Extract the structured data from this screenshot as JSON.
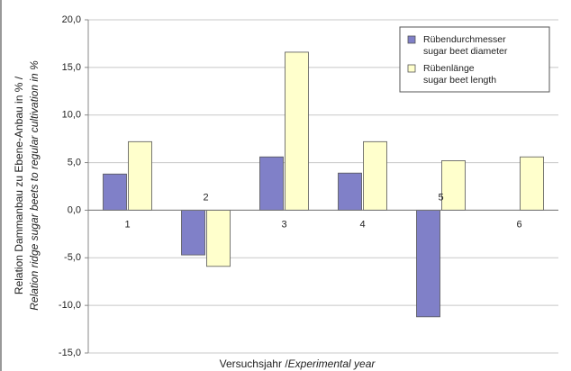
{
  "chart_data": {
    "type": "bar",
    "ylabel": {
      "line1": "Relation Dammanbau zu Ebene-Anbau in % /",
      "line2": "Relation ridge sugar beets to regular cultivation in %"
    },
    "xlabel": {
      "de": "Versuchsjahr /",
      "en": "Experimental year"
    },
    "categories": [
      "1",
      "2",
      "3",
      "4",
      "5",
      "6"
    ],
    "series": [
      {
        "name": "Rübendurchmesser",
        "name_en": "sugar beet diameter",
        "color": "#8080c8",
        "values": [
          3.8,
          -4.7,
          5.6,
          3.9,
          -11.2,
          null
        ]
      },
      {
        "name": "Rübenlänge",
        "name_en": "sugar beet length",
        "color": "#ffffcc",
        "values": [
          7.2,
          -5.9,
          16.6,
          7.2,
          5.2,
          5.6
        ]
      }
    ],
    "ylim": [
      -15,
      20
    ],
    "yticks": [
      {
        "value": -15,
        "label": "-15,0"
      },
      {
        "value": -10,
        "label": "-10,0"
      },
      {
        "value": -5,
        "label": "-5,0"
      },
      {
        "value": 0,
        "label": "0,0"
      },
      {
        "value": 5,
        "label": "5,0"
      },
      {
        "value": 10,
        "label": "10,0"
      },
      {
        "value": 15,
        "label": "15,0"
      },
      {
        "value": 20,
        "label": "20,0"
      }
    ],
    "grid": true,
    "legend": "upper right"
  }
}
